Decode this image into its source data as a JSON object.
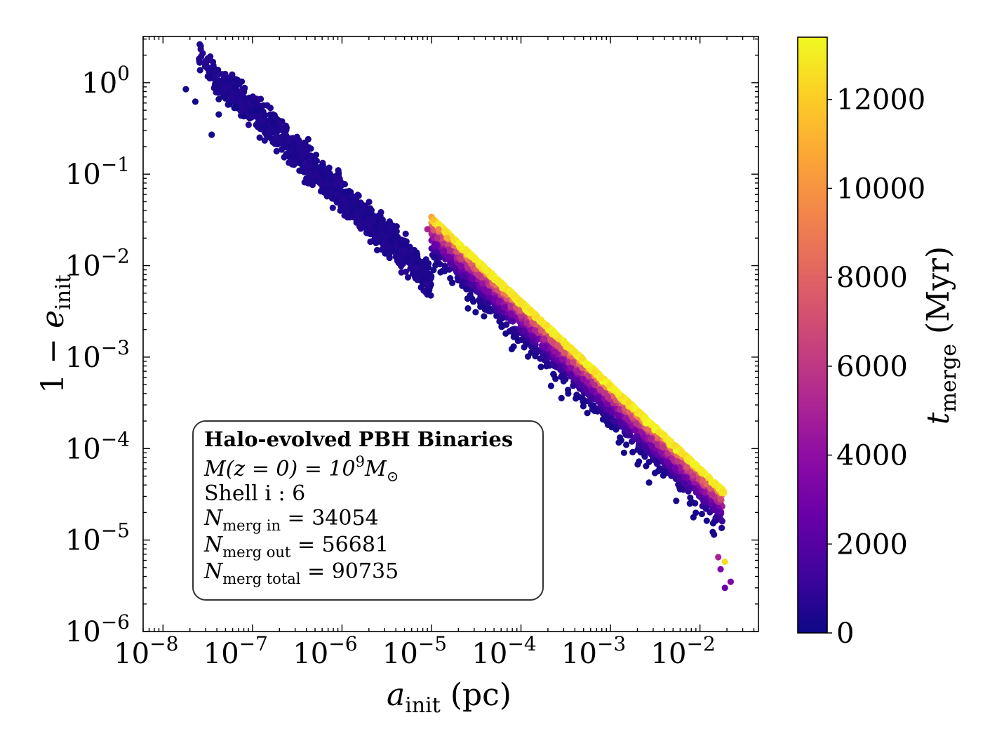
{
  "chart_data": {
    "type": "scatter",
    "xscale": "log",
    "yscale": "log",
    "xlabel": {
      "symbol": "a",
      "subscript": "init",
      "unit": "(pc)"
    },
    "ylabel": {
      "prefix": "1 − ",
      "symbol": "e",
      "subscript": "init"
    },
    "xlim": [
      6e-09,
      0.045
    ],
    "ylim": [
      1e-06,
      3.2
    ],
    "x_ticks": [
      {
        "value": 1e-08,
        "base": "10",
        "exp": "−8"
      },
      {
        "value": 1e-07,
        "base": "10",
        "exp": "−7"
      },
      {
        "value": 1e-06,
        "base": "10",
        "exp": "−6"
      },
      {
        "value": 1e-05,
        "base": "10",
        "exp": "−5"
      },
      {
        "value": 0.0001,
        "base": "10",
        "exp": "−4"
      },
      {
        "value": 0.001,
        "base": "10",
        "exp": "−3"
      },
      {
        "value": 0.01,
        "base": "10",
        "exp": "−2"
      }
    ],
    "y_ticks": [
      {
        "value": 1e-06,
        "base": "10",
        "exp": "−6"
      },
      {
        "value": 1e-05,
        "base": "10",
        "exp": "−5"
      },
      {
        "value": 0.0001,
        "base": "10",
        "exp": "−4"
      },
      {
        "value": 0.001,
        "base": "10",
        "exp": "−3"
      },
      {
        "value": 0.01,
        "base": "10",
        "exp": "−2"
      },
      {
        "value": 0.1,
        "base": "10",
        "exp": "−1"
      },
      {
        "value": 1,
        "base": "10",
        "exp": "0"
      }
    ],
    "colorbar": {
      "label_symbol": "t",
      "label_subscript": "merge",
      "label_unit": "(Myr)",
      "colormap": "plasma",
      "range": [
        0,
        13400
      ],
      "ticks": [
        "0",
        "2000",
        "4000",
        "6000",
        "8000",
        "10000",
        "12000"
      ]
    },
    "sample_points": [
      {
        "x": 1.8e-08,
        "y": 0.85,
        "t": 150
      },
      {
        "x": 2.3e-08,
        "y": 0.62,
        "t": 150
      },
      {
        "x": 3.5e-08,
        "y": 0.27,
        "t": 200
      },
      {
        "x": 4.2e-08,
        "y": 0.66,
        "t": 150
      },
      {
        "x": 4.2e-08,
        "y": 0.45,
        "t": 150
      },
      {
        "x": 5.5e-08,
        "y": 0.58,
        "t": 200
      },
      {
        "x": 6.5e-08,
        "y": 0.53,
        "t": 150
      },
      {
        "x": 8e-08,
        "y": 0.43,
        "t": 200
      },
      {
        "x": 9.5e-08,
        "y": 0.48,
        "t": 250
      },
      {
        "x": 1.1e-07,
        "y": 0.5,
        "t": 150
      },
      {
        "x": 1e-05,
        "y": 0.034,
        "t": 10500
      },
      {
        "x": 1.05e-05,
        "y": 0.032,
        "t": 11500
      },
      {
        "x": 9e-06,
        "y": 0.025,
        "t": 5000
      },
      {
        "x": 1.2e-05,
        "y": 0.025,
        "t": 9500
      },
      {
        "x": 1.5e-05,
        "y": 0.02,
        "t": 11000
      },
      {
        "x": 0.016,
        "y": 6.5e-06,
        "t": 5000
      },
      {
        "x": 0.017,
        "y": 4.8e-06,
        "t": 3500
      },
      {
        "x": 0.019,
        "y": 5.8e-06,
        "t": 12500
      },
      {
        "x": 0.019,
        "y": 3e-06,
        "t": 2500
      },
      {
        "x": 0.022,
        "y": 3.5e-06,
        "t": 3500
      }
    ],
    "distribution": {
      "n_points": 90735,
      "description": "dense diagonal band of merging binaries; yellow (long merger time) upper edge",
      "fan_start_x": 1e-05,
      "fan_start_y": 0.034,
      "edge_end_x": 0.019,
      "edge_end_y": 5.8e-06
    }
  },
  "annotation": {
    "title": "Halo-evolved PBH Binaries",
    "line1": {
      "lhs": "M(z = 0) = 10",
      "sup": "9",
      "rhs": "M",
      "rhs_sub": "⊙"
    },
    "line2": "Shell i : 6",
    "line3": {
      "sym": "N",
      "sub": "merg in",
      "value": " = 34054"
    },
    "line4": {
      "sym": "N",
      "sub": "merg out",
      "value": " = 56681"
    },
    "line5": {
      "sym": "N",
      "sub": "merg total",
      "value": " = 90735"
    }
  }
}
